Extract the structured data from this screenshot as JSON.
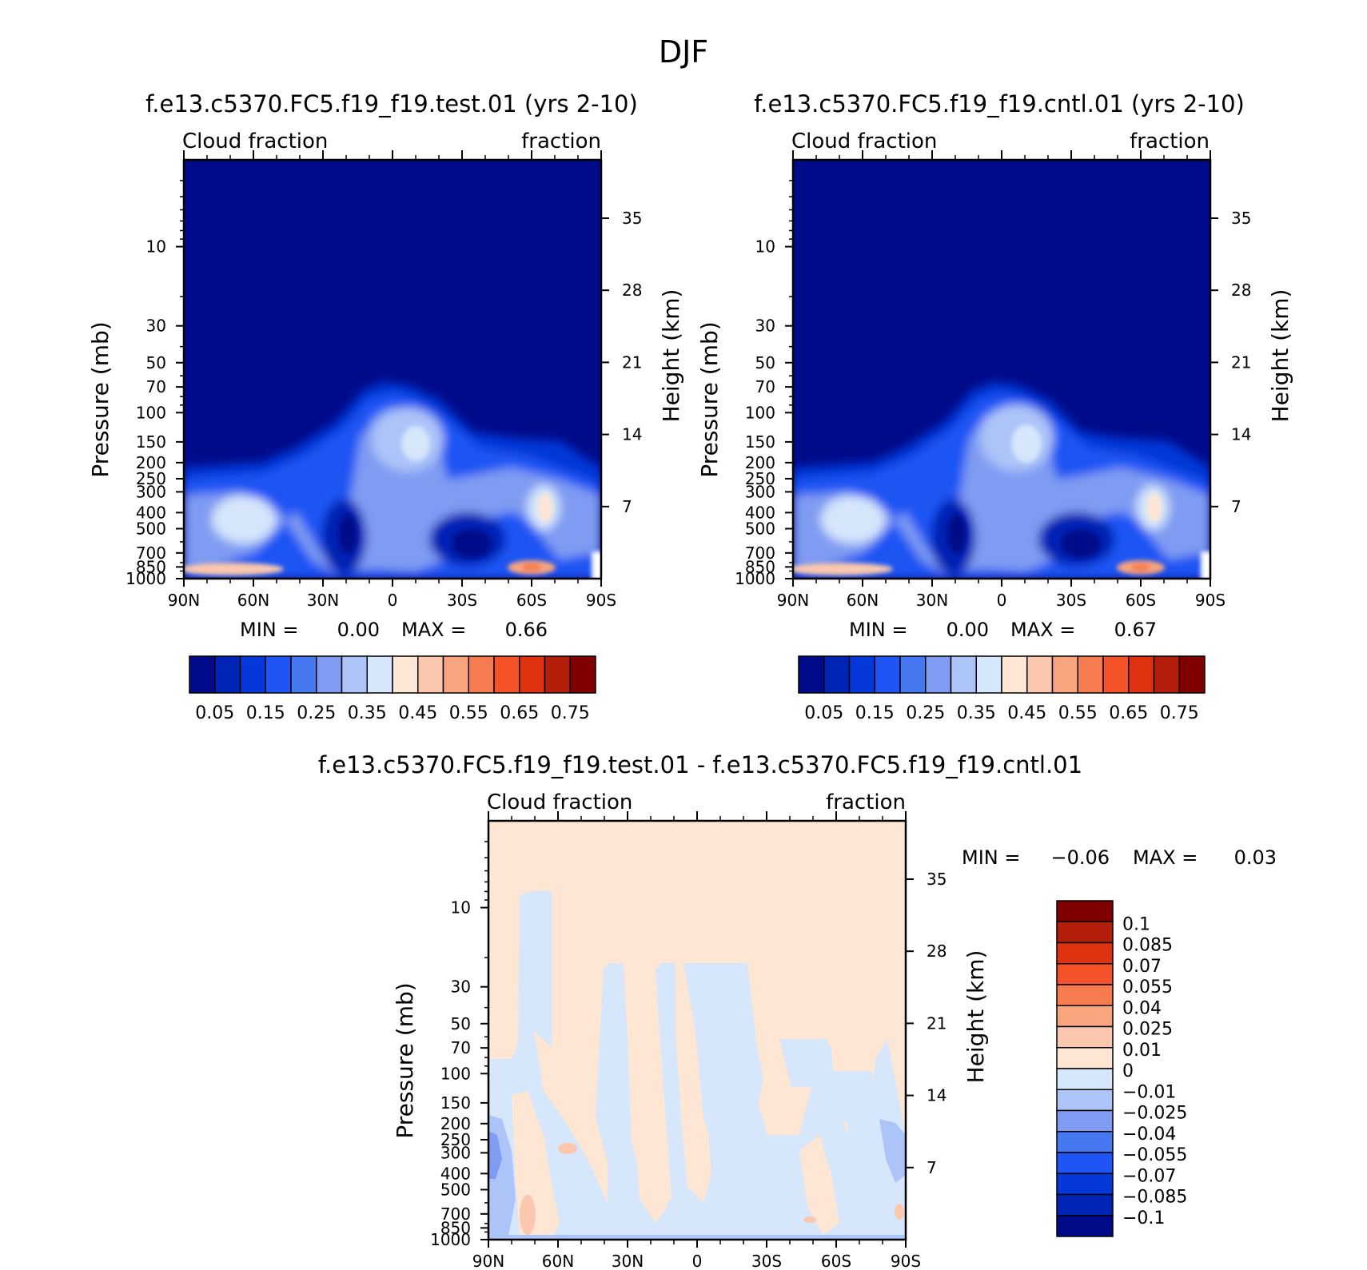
{
  "figure_title": "DJF",
  "chart_data": [
    {
      "type": "heatmap",
      "title": "f.e13.c5370.FC5.f19_f19.test.01 (yrs 2-10)",
      "left_label": "Cloud fraction",
      "right_label": "fraction",
      "ylabel": "Pressure (mb)",
      "ylabel_right": "Height (km)",
      "x_ticks": [
        "90N",
        "60N",
        "30N",
        "0",
        "30S",
        "60S",
        "90S"
      ],
      "x_range": [
        90,
        -90
      ],
      "y_ticks": [
        10,
        30,
        50,
        70,
        100,
        150,
        200,
        250,
        300,
        400,
        500,
        700,
        850,
        1000
      ],
      "y_range": [
        3,
        1000
      ],
      "y_scale": "log",
      "height_ticks": [
        35,
        28,
        21,
        14,
        7
      ],
      "min_label": "MIN =",
      "min_value": "0.00",
      "max_label": "MAX =",
      "max_value": "0.66",
      "colorbar": {
        "orientation": "horizontal",
        "labels": [
          "0.05",
          "0.15",
          "0.25",
          "0.35",
          "0.45",
          "0.55",
          "0.65",
          "0.75"
        ],
        "colors": [
          "#000b8a",
          "#0024b4",
          "#0438d8",
          "#1e55f4",
          "#4679f1",
          "#7f9cf2",
          "#adc4f8",
          "#d6e6fb",
          "#fde6d4",
          "#fbc8ae",
          "#f8a47e",
          "#f67c4f",
          "#f45228",
          "#de3210",
          "#b31e0a",
          "#800000"
        ]
      },
      "features": [
        {
          "lat": 10,
          "p": 180,
          "value": 0.35
        },
        {
          "lat": -60,
          "p": 430,
          "value": 0.35
        },
        {
          "lat": 65,
          "p": 480,
          "value": 0.33
        },
        {
          "lat": -20,
          "p": 650,
          "value": 0.02
        },
        {
          "lat": -63,
          "p": 930,
          "value": 0.55
        },
        {
          "lat": 70,
          "p": 920,
          "value": 0.45
        }
      ]
    },
    {
      "type": "heatmap",
      "title": "f.e13.c5370.FC5.f19_f19.cntl.01 (yrs 2-10)",
      "left_label": "Cloud fraction",
      "right_label": "fraction",
      "ylabel": "Pressure (mb)",
      "ylabel_right": "Height (km)",
      "x_ticks": [
        "90N",
        "60N",
        "30N",
        "0",
        "30S",
        "60S",
        "90S"
      ],
      "x_range": [
        90,
        -90
      ],
      "y_ticks": [
        10,
        30,
        50,
        70,
        100,
        150,
        200,
        250,
        300,
        400,
        500,
        700,
        850,
        1000
      ],
      "y_range": [
        3,
        1000
      ],
      "y_scale": "log",
      "height_ticks": [
        35,
        28,
        21,
        14,
        7
      ],
      "min_label": "MIN =",
      "min_value": "0.00",
      "max_label": "MAX =",
      "max_value": "0.67",
      "colorbar": {
        "orientation": "horizontal",
        "labels": [
          "0.05",
          "0.15",
          "0.25",
          "0.35",
          "0.45",
          "0.55",
          "0.65",
          "0.75"
        ],
        "colors": [
          "#000b8a",
          "#0024b4",
          "#0438d8",
          "#1e55f4",
          "#4679f1",
          "#7f9cf2",
          "#adc4f8",
          "#d6e6fb",
          "#fde6d4",
          "#fbc8ae",
          "#f8a47e",
          "#f67c4f",
          "#f45228",
          "#de3210",
          "#b31e0a",
          "#800000"
        ]
      },
      "features": [
        {
          "lat": 10,
          "p": 180,
          "value": 0.35
        },
        {
          "lat": -60,
          "p": 430,
          "value": 0.35
        },
        {
          "lat": 65,
          "p": 480,
          "value": 0.33
        },
        {
          "lat": -20,
          "p": 650,
          "value": 0.02
        },
        {
          "lat": -63,
          "p": 930,
          "value": 0.56
        },
        {
          "lat": 70,
          "p": 920,
          "value": 0.45
        }
      ]
    },
    {
      "type": "heatmap",
      "title": "f.e13.c5370.FC5.f19_f19.test.01 - f.e13.c5370.FC5.f19_f19.cntl.01",
      "left_label": "Cloud fraction",
      "right_label": "fraction",
      "ylabel": "Pressure (mb)",
      "ylabel_right": "Height (km)",
      "x_ticks": [
        "90N",
        "60N",
        "30N",
        "0",
        "30S",
        "60S",
        "90S"
      ],
      "x_range": [
        90,
        -90
      ],
      "y_ticks": [
        10,
        30,
        50,
        70,
        100,
        150,
        200,
        250,
        300,
        400,
        500,
        700,
        850,
        1000
      ],
      "y_range": [
        3,
        1000
      ],
      "y_scale": "log",
      "height_ticks": [
        35,
        28,
        21,
        14,
        7
      ],
      "min_label": "MIN =",
      "min_value": "-0.06",
      "max_label": "MAX =",
      "max_value": "0.03",
      "colorbar": {
        "orientation": "vertical",
        "labels": [
          "0.1",
          "0.085",
          "0.07",
          "0.055",
          "0.04",
          "0.025",
          "0.01",
          "0",
          "-0.01",
          "-0.025",
          "-0.04",
          "-0.055",
          "-0.07",
          "-0.085",
          "-0.1"
        ],
        "colors": [
          "#800000",
          "#b31e0a",
          "#de3210",
          "#f45228",
          "#f67c4f",
          "#f8a47e",
          "#fbc8ae",
          "#fde6d4",
          "#d6e6fb",
          "#adc4f8",
          "#7f9cf2",
          "#4679f1",
          "#1e55f4",
          "#0438d8",
          "#0024b4",
          "#000b8a"
        ]
      }
    }
  ]
}
